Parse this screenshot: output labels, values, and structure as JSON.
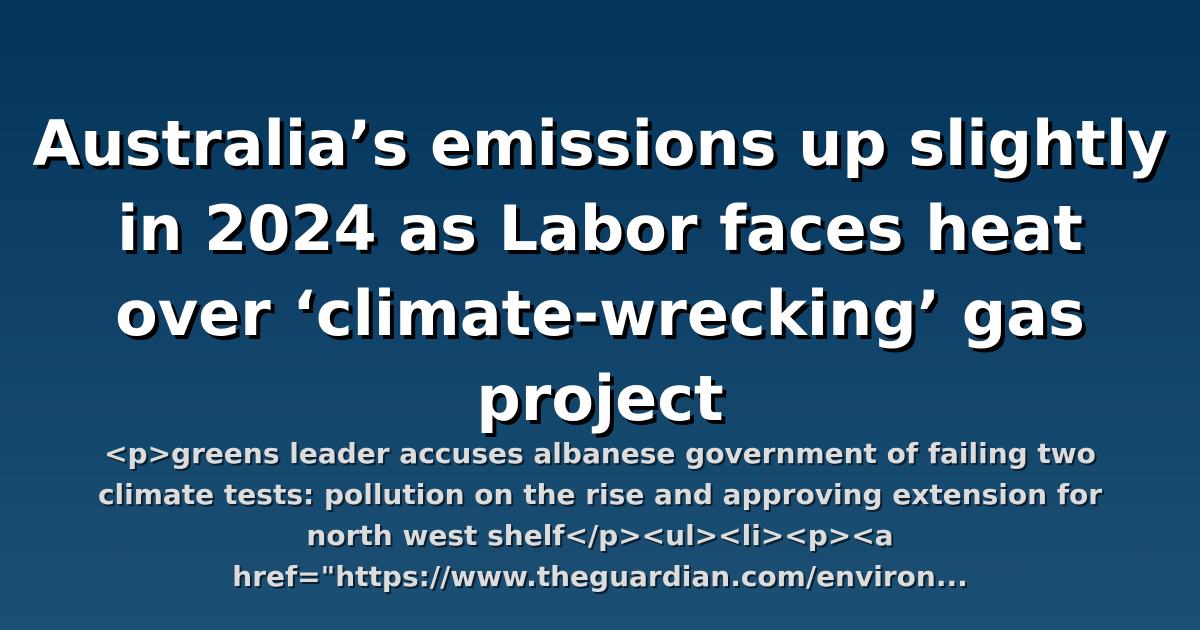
{
  "headline": "Australia’s emissions up slightly in 2024 as Labor faces heat over ‘climate-wrecking’ gas project",
  "summary": "<p>greens leader accuses albanese government of failing two climate tests: pollution on the rise and approving extension for north west shelf</p><ul><li><p><a href=\"https://www.theguardian.com/environ...",
  "colors": {
    "background_top": "#03355a",
    "background_bottom": "#1c5073",
    "headline_text": "#ffffff",
    "summary_text": "#dcdcdc"
  }
}
